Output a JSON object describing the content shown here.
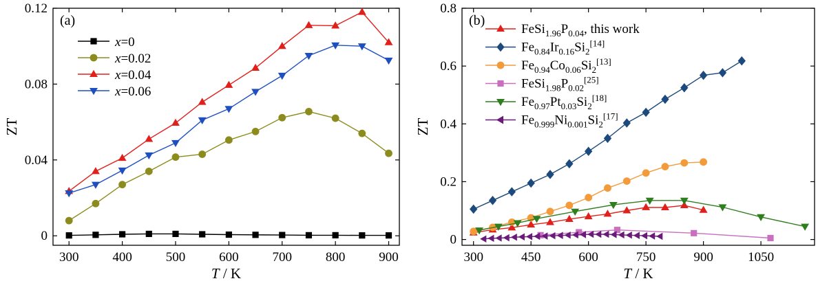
{
  "chart_data": [
    {
      "type": "line",
      "panel_label": "(a)",
      "xlabel": "T / K",
      "xlabel_italic": "T",
      "xlabel_rest": " / K",
      "ylabel": "ZT",
      "xlim": [
        270,
        920
      ],
      "ylim": [
        -0.005,
        0.12
      ],
      "xticks": [
        300,
        400,
        500,
        600,
        700,
        800,
        900
      ],
      "yticks": [
        0,
        0.04,
        0.08,
        0.12
      ],
      "ytick_labels": [
        "0",
        "0.04",
        "0.08",
        "0.12"
      ],
      "legend_position": "top-left",
      "series": [
        {
          "name": "x=0",
          "name_var": "x",
          "name_val": "=0",
          "color": "#000000",
          "marker": "square",
          "x": [
            300,
            350,
            400,
            450,
            500,
            550,
            600,
            650,
            700,
            750,
            800,
            850,
            900
          ],
          "y": [
            0.0002,
            0.0005,
            0.0008,
            0.001,
            0.001,
            0.0008,
            0.0006,
            0.0005,
            0.0004,
            0.0003,
            0.0003,
            0.0002,
            0.0002
          ]
        },
        {
          "name": "x=0.02",
          "name_var": "x",
          "name_val": "=0.02",
          "color": "#8c8c1e",
          "marker": "circle",
          "x": [
            300,
            350,
            400,
            450,
            500,
            550,
            600,
            650,
            700,
            750,
            800,
            850,
            900
          ],
          "y": [
            0.008,
            0.017,
            0.027,
            0.034,
            0.0415,
            0.043,
            0.0505,
            0.055,
            0.0623,
            0.0655,
            0.062,
            0.054,
            0.0435
          ]
        },
        {
          "name": "x=0.04",
          "name_var": "x",
          "name_val": "=0.04",
          "color": "#e0201b",
          "marker": "triangle-up",
          "x": [
            300,
            350,
            400,
            450,
            500,
            550,
            600,
            650,
            700,
            750,
            800,
            850,
            900
          ],
          "y": [
            0.0235,
            0.034,
            0.041,
            0.051,
            0.0595,
            0.0705,
            0.0795,
            0.0885,
            0.1,
            0.111,
            0.1108,
            0.118,
            0.102
          ]
        },
        {
          "name": "x=0.06",
          "name_var": "x",
          "name_val": "=0.06",
          "color": "#1f4fbf",
          "marker": "triangle-down",
          "x": [
            300,
            350,
            400,
            450,
            500,
            550,
            600,
            650,
            700,
            750,
            800,
            850,
            900
          ],
          "y": [
            0.0225,
            0.027,
            0.0345,
            0.0425,
            0.049,
            0.061,
            0.067,
            0.076,
            0.0845,
            0.095,
            0.1005,
            0.1,
            0.0925
          ]
        }
      ]
    },
    {
      "type": "line",
      "panel_label": "(b)",
      "xlabel": "T / K",
      "xlabel_italic": "T",
      "xlabel_rest": " / K",
      "ylabel": "ZT",
      "xlim": [
        270,
        1190
      ],
      "ylim": [
        -0.02,
        0.8
      ],
      "xticks": [
        300,
        450,
        600,
        750,
        900,
        1050
      ],
      "yticks": [
        0,
        0.2,
        0.4,
        0.6,
        0.8
      ],
      "ytick_labels": [
        "0",
        "0.2",
        "0.4",
        "0.6",
        "0.8"
      ],
      "legend_position": "top-left",
      "series": [
        {
          "name": "FeSi1.96P0.04, this work",
          "name_parts": [
            {
              "t": "FeSi",
              "s": ""
            },
            {
              "t": "1.96",
              "s": "sub"
            },
            {
              "t": "P",
              "s": ""
            },
            {
              "t": "0.04",
              "s": "sub"
            },
            {
              "t": ", this work",
              "s": ""
            }
          ],
          "color": "#e0201b",
          "marker": "triangle-up",
          "x": [
            300,
            350,
            400,
            450,
            500,
            550,
            600,
            650,
            700,
            750,
            800,
            850,
            900
          ],
          "y": [
            0.0235,
            0.034,
            0.041,
            0.051,
            0.0595,
            0.0705,
            0.0795,
            0.0885,
            0.1,
            0.111,
            0.1108,
            0.118,
            0.102
          ]
        },
        {
          "name": "Fe0.84Ir0.16Si2[14]",
          "name_parts": [
            {
              "t": "Fe",
              "s": ""
            },
            {
              "t": "0.84",
              "s": "sub"
            },
            {
              "t": "Ir",
              "s": ""
            },
            {
              "t": "0.16",
              "s": "sub"
            },
            {
              "t": "Si",
              "s": ""
            },
            {
              "t": "2",
              "s": "sub"
            },
            {
              "t": "[14]",
              "s": "sup"
            }
          ],
          "color": "#1c4a7c",
          "marker": "diamond",
          "x": [
            300,
            350,
            400,
            450,
            500,
            550,
            600,
            650,
            700,
            750,
            800,
            850,
            900,
            950,
            1000
          ],
          "y": [
            0.105,
            0.135,
            0.165,
            0.195,
            0.225,
            0.262,
            0.305,
            0.35,
            0.403,
            0.44,
            0.485,
            0.525,
            0.568,
            0.577,
            0.618
          ]
        },
        {
          "name": "Fe0.94Co0.06Si2[13]",
          "name_parts": [
            {
              "t": "Fe",
              "s": ""
            },
            {
              "t": "0.94",
              "s": "sub"
            },
            {
              "t": "Co",
              "s": ""
            },
            {
              "t": "0.06",
              "s": "sub"
            },
            {
              "t": "Si",
              "s": ""
            },
            {
              "t": "2",
              "s": "sub"
            },
            {
              "t": "[13]",
              "s": "sup"
            }
          ],
          "color": "#f39a3a",
          "marker": "circle",
          "x": [
            300,
            350,
            400,
            450,
            500,
            550,
            600,
            650,
            700,
            750,
            800,
            850,
            900
          ],
          "y": [
            0.028,
            0.042,
            0.06,
            0.075,
            0.097,
            0.118,
            0.145,
            0.178,
            0.202,
            0.23,
            0.252,
            0.265,
            0.268
          ]
        },
        {
          "name": "FeSi1.98P0.02[25]",
          "name_parts": [
            {
              "t": "FeSi",
              "s": ""
            },
            {
              "t": "1.98",
              "s": "sub"
            },
            {
              "t": "P",
              "s": ""
            },
            {
              "t": "0.02",
              "s": "sub"
            },
            {
              "t": "[25]",
              "s": "sup"
            }
          ],
          "color": "#c86fc0",
          "marker": "square",
          "x": [
            475,
            575,
            675,
            875,
            1075
          ],
          "y": [
            0.015,
            0.025,
            0.033,
            0.022,
            0.005
          ]
        },
        {
          "name": "Fe0.97Pt0.03Si2[18]",
          "name_parts": [
            {
              "t": "Fe",
              "s": ""
            },
            {
              "t": "0.97",
              "s": "sub"
            },
            {
              "t": "Pt",
              "s": ""
            },
            {
              "t": "0.03",
              "s": "sub"
            },
            {
              "t": "Si",
              "s": ""
            },
            {
              "t": "2",
              "s": "sub"
            },
            {
              "t": "[18]",
              "s": "sup"
            }
          ],
          "color": "#2e7d1e",
          "marker": "triangle-down",
          "x": [
            315,
            365,
            415,
            465,
            565,
            665,
            760,
            850,
            950,
            1050,
            1165
          ],
          "y": [
            0.032,
            0.045,
            0.057,
            0.072,
            0.097,
            0.12,
            0.135,
            0.135,
            0.112,
            0.078,
            0.045
          ]
        },
        {
          "name": "Fe0.999Ni0.001Si2[17]",
          "name_parts": [
            {
              "t": "Fe",
              "s": ""
            },
            {
              "t": "0.999",
              "s": "sub"
            },
            {
              "t": "Ni",
              "s": ""
            },
            {
              "t": "0.001",
              "s": "sub"
            },
            {
              "t": "Si",
              "s": ""
            },
            {
              "t": "2",
              "s": "sub"
            },
            {
              "t": "[17]",
              "s": "sup"
            }
          ],
          "color": "#6a1b7a",
          "marker": "triangle-left",
          "x": [
            327,
            347,
            367,
            387,
            407,
            427,
            447,
            467,
            487,
            507,
            527,
            547,
            567,
            587,
            607,
            627,
            647,
            667,
            687,
            707,
            727,
            747,
            767,
            787
          ],
          "y": [
            0.002,
            0.004,
            0.005,
            0.006,
            0.008,
            0.009,
            0.01,
            0.011,
            0.012,
            0.013,
            0.014,
            0.015,
            0.016,
            0.017,
            0.018,
            0.018,
            0.018,
            0.017,
            0.016,
            0.015,
            0.014,
            0.013,
            0.012,
            0.011
          ]
        }
      ]
    }
  ]
}
